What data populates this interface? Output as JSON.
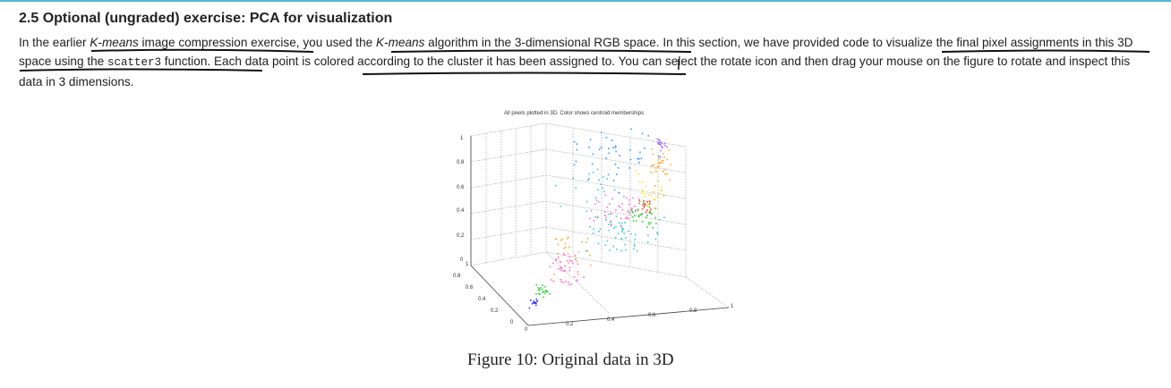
{
  "section": {
    "heading": "2.5 Optional (ungraded) exercise: PCA for visualization",
    "paragraph": {
      "p1": "In the earlier ",
      "p2": "K-means",
      "p3": " image compression exercise, you used the ",
      "p4": "K-means",
      "p5": " algorithm in the 3-dimensional RGB space. In this section, we have provided code to visualize the final pixel assignments in this 3D space using the ",
      "p6": "scatter3",
      "p7": " function. Each data point is colored according to the cluster it has been assigned to. You can select the rotate icon and then drag your mouse on the figure to rotate and inspect this data in 3 dimensions."
    }
  },
  "figure": {
    "plot_title": "All pixels plotted in 3D. Color shows centroid memberships",
    "caption": "Figure 10: Original data in 3D",
    "colors": [
      "#3333ff",
      "#33cc33",
      "#ff3333",
      "#ff66cc",
      "#ffaa33",
      "#33cccc",
      "#aa66ff",
      "#3399ff",
      "#ffdd33"
    ]
  },
  "chart_data": {
    "type": "scatter",
    "title": "All pixels plotted in 3D. Color shows centroid memberships",
    "z_ticks": [
      "1",
      "0.8",
      "0.6",
      "0.4",
      "0.2",
      "0"
    ],
    "y_ticks": [
      "1",
      "0.8",
      "0.6",
      "0.4",
      "0.2",
      "0"
    ],
    "x_ticks": [
      "0",
      "0.2",
      "0.4",
      "0.6",
      "0.8",
      "1"
    ],
    "xlim": [
      0,
      1
    ],
    "ylim": [
      0,
      1
    ],
    "zlim": [
      0,
      1
    ],
    "grid": true
  }
}
